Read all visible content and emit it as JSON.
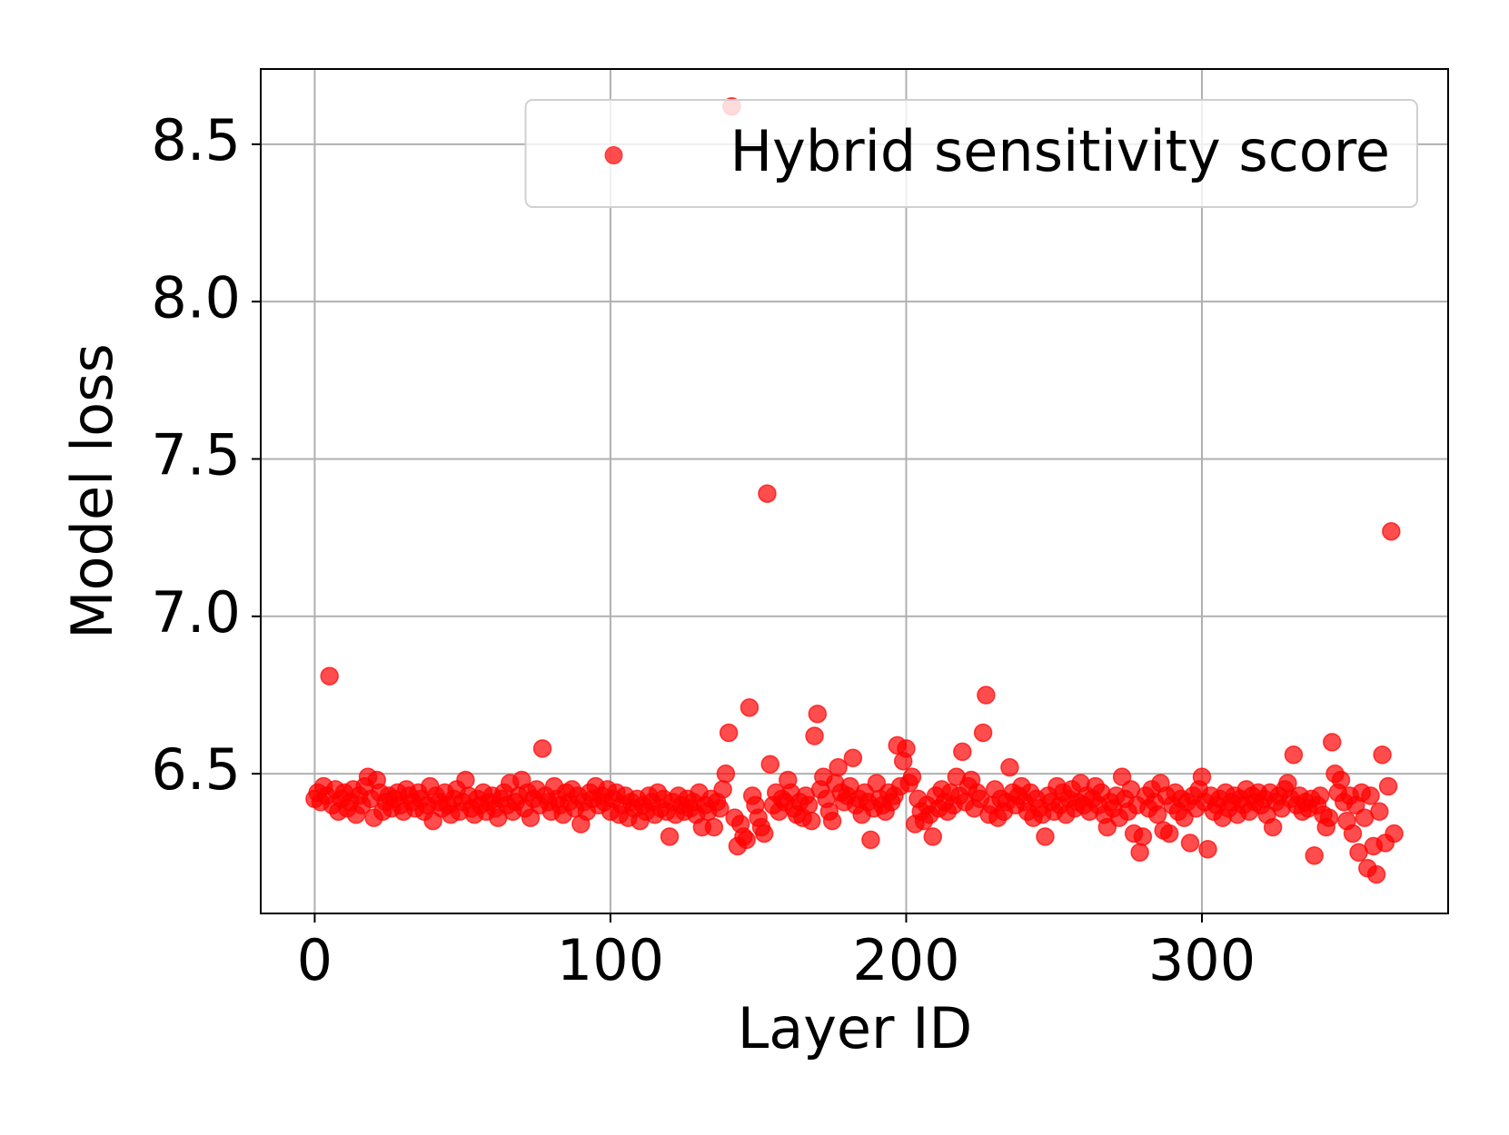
{
  "chart_data": {
    "type": "scatter",
    "xlabel": "Layer ID",
    "ylabel": "Model loss",
    "xlim": [
      -18.25,
      383.25
    ],
    "ylim": [
      6.056,
      8.739
    ],
    "xticks": [
      0,
      100,
      200,
      300
    ],
    "yticks": [
      {
        "value": 6.5,
        "label": "6.5"
      },
      {
        "value": 7.0,
        "label": "7.0"
      },
      {
        "value": 7.5,
        "label": "7.5"
      },
      {
        "value": 8.0,
        "label": "8.0"
      },
      {
        "value": 8.5,
        "label": "8.5"
      }
    ],
    "grid": true,
    "legend": "upper right",
    "series": [
      {
        "name": "Hybrid sensitivity score",
        "color": "#ff0000",
        "x": [
          0,
          1,
          2,
          3,
          4,
          5,
          6,
          7,
          8,
          9,
          10,
          11,
          12,
          13,
          14,
          15,
          16,
          17,
          18,
          19,
          20,
          21,
          22,
          23,
          24,
          25,
          26,
          27,
          28,
          29,
          30,
          31,
          32,
          33,
          34,
          35,
          36,
          37,
          38,
          39,
          40,
          41,
          42,
          43,
          44,
          45,
          46,
          47,
          48,
          49,
          50,
          51,
          52,
          53,
          54,
          55,
          56,
          57,
          58,
          59,
          60,
          61,
          62,
          63,
          64,
          65,
          66,
          67,
          68,
          69,
          70,
          71,
          72,
          73,
          74,
          75,
          76,
          77,
          78,
          79,
          80,
          81,
          82,
          83,
          84,
          85,
          86,
          87,
          88,
          89,
          90,
          91,
          92,
          93,
          94,
          95,
          96,
          97,
          98,
          99,
          100,
          101,
          102,
          103,
          104,
          105,
          106,
          107,
          108,
          109,
          110,
          111,
          112,
          113,
          114,
          115,
          116,
          117,
          118,
          119,
          120,
          121,
          122,
          123,
          124,
          125,
          126,
          127,
          128,
          129,
          130,
          131,
          132,
          133,
          134,
          135,
          136,
          137,
          138,
          139,
          140,
          141,
          142,
          143,
          144,
          145,
          146,
          147,
          148,
          149,
          150,
          151,
          152,
          153,
          154,
          155,
          156,
          157,
          158,
          159,
          160,
          161,
          162,
          163,
          164,
          165,
          166,
          167,
          168,
          169,
          170,
          171,
          172,
          173,
          174,
          175,
          176,
          177,
          178,
          179,
          180,
          181,
          182,
          183,
          184,
          185,
          186,
          187,
          188,
          189,
          190,
          191,
          192,
          193,
          194,
          195,
          196,
          197,
          198,
          199,
          200,
          201,
          202,
          203,
          204,
          205,
          206,
          207,
          208,
          209,
          210,
          211,
          212,
          213,
          214,
          215,
          216,
          217,
          218,
          219,
          220,
          221,
          222,
          223,
          224,
          225,
          226,
          227,
          228,
          229,
          230,
          231,
          232,
          233,
          234,
          235,
          236,
          237,
          238,
          239,
          240,
          241,
          242,
          243,
          244,
          245,
          246,
          247,
          248,
          249,
          250,
          251,
          252,
          253,
          254,
          255,
          256,
          257,
          258,
          259,
          260,
          261,
          262,
          263,
          264,
          265,
          266,
          267,
          268,
          269,
          270,
          271,
          272,
          273,
          274,
          275,
          276,
          277,
          278,
          279,
          280,
          281,
          282,
          283,
          284,
          285,
          286,
          287,
          288,
          289,
          290,
          291,
          292,
          293,
          294,
          295,
          296,
          297,
          298,
          299,
          300,
          301,
          302,
          303,
          304,
          305,
          306,
          307,
          308,
          309,
          310,
          311,
          312,
          313,
          314,
          315,
          316,
          317,
          318,
          319,
          320,
          321,
          322,
          323,
          324,
          325,
          326,
          327,
          328,
          329,
          330,
          331,
          332,
          333,
          334,
          335,
          336,
          337,
          338,
          339,
          340,
          341,
          342,
          343,
          344,
          345,
          346,
          347,
          348,
          349,
          350,
          351,
          352,
          353,
          354,
          355,
          356,
          357,
          358,
          359,
          360,
          361,
          362,
          363,
          364,
          365
        ],
        "values": [
          6.42,
          6.44,
          6.41,
          6.46,
          6.43,
          6.81,
          6.4,
          6.45,
          6.38,
          6.42,
          6.44,
          6.39,
          6.41,
          6.45,
          6.37,
          6.43,
          6.4,
          6.46,
          6.49,
          6.42,
          6.36,
          6.48,
          6.44,
          6.38,
          6.41,
          6.43,
          6.39,
          6.42,
          6.44,
          6.4,
          6.38,
          6.45,
          6.43,
          6.41,
          6.39,
          6.44,
          6.42,
          6.38,
          6.4,
          6.46,
          6.35,
          6.43,
          6.41,
          6.39,
          6.44,
          6.4,
          6.37,
          6.42,
          6.45,
          6.38,
          6.41,
          6.48,
          6.43,
          6.39,
          6.37,
          6.42,
          6.4,
          6.44,
          6.38,
          6.41,
          6.43,
          6.39,
          6.36,
          6.42,
          6.44,
          6.4,
          6.47,
          6.38,
          6.41,
          6.43,
          6.48,
          6.39,
          6.44,
          6.36,
          6.42,
          6.45,
          6.4,
          6.58,
          6.43,
          6.41,
          6.38,
          6.46,
          6.42,
          6.4,
          6.37,
          6.44,
          6.41,
          6.45,
          6.39,
          6.43,
          6.34,
          6.41,
          6.38,
          6.44,
          6.42,
          6.46,
          6.4,
          6.43,
          6.41,
          6.45,
          6.38,
          6.42,
          6.44,
          6.37,
          6.4,
          6.43,
          6.36,
          6.41,
          6.39,
          6.42,
          6.35,
          6.4,
          6.38,
          6.43,
          6.41,
          6.37,
          6.44,
          6.39,
          6.42,
          6.38,
          6.3,
          6.41,
          6.37,
          6.43,
          6.4,
          6.38,
          6.42,
          6.39,
          6.41,
          6.37,
          6.44,
          6.33,
          6.4,
          6.38,
          6.42,
          6.33,
          6.41,
          6.39,
          6.45,
          6.5,
          6.63,
          8.62,
          6.36,
          6.27,
          6.34,
          6.3,
          6.29,
          6.71,
          6.43,
          6.4,
          6.36,
          6.33,
          6.31,
          7.39,
          6.53,
          6.4,
          6.44,
          6.38,
          6.42,
          6.41,
          6.48,
          6.44,
          6.39,
          6.37,
          6.41,
          6.36,
          6.43,
          6.4,
          6.35,
          6.62,
          6.69,
          6.45,
          6.49,
          6.42,
          6.38,
          6.35,
          6.47,
          6.52,
          6.44,
          6.41,
          6.43,
          6.46,
          6.55,
          6.4,
          6.42,
          6.37,
          6.44,
          6.41,
          6.29,
          6.39,
          6.47,
          6.42,
          6.4,
          6.38,
          6.44,
          6.41,
          6.43,
          6.59,
          6.46,
          6.54,
          6.58,
          6.47,
          6.49,
          6.34,
          6.42,
          6.38,
          6.35,
          6.4,
          6.37,
          6.3,
          6.43,
          6.39,
          6.45,
          6.41,
          6.38,
          6.44,
          6.4,
          6.49,
          6.43,
          6.57,
          6.41,
          6.46,
          6.48,
          6.39,
          6.44,
          6.42,
          6.63,
          6.75,
          6.37,
          6.4,
          6.45,
          6.36,
          6.42,
          6.38,
          6.41,
          6.52,
          6.44,
          6.4,
          6.43,
          6.46,
          6.41,
          6.38,
          6.44,
          6.36,
          6.42,
          6.39,
          6.37,
          6.3,
          6.43,
          6.41,
          6.38,
          6.46,
          6.4,
          6.44,
          6.37,
          6.42,
          6.45,
          6.39,
          6.41,
          6.47,
          6.4,
          6.43,
          6.38,
          6.42,
          6.46,
          6.4,
          6.44,
          6.37,
          6.33,
          6.41,
          6.39,
          6.43,
          6.36,
          6.49,
          6.42,
          6.38,
          6.45,
          6.31,
          6.4,
          6.25,
          6.3,
          6.43,
          6.39,
          6.45,
          6.41,
          6.37,
          6.47,
          6.32,
          6.43,
          6.31,
          6.4,
          6.44,
          6.38,
          6.42,
          6.36,
          6.41,
          6.28,
          6.43,
          6.39,
          6.45,
          6.49,
          6.41,
          6.26,
          6.43,
          6.38,
          6.4,
          6.42,
          6.36,
          6.44,
          6.39,
          6.41,
          6.43,
          6.37,
          6.42,
          6.4,
          6.45,
          6.38,
          6.43,
          6.41,
          6.44,
          6.4,
          6.42,
          6.37,
          6.44,
          6.33,
          6.41,
          6.43,
          6.39,
          6.45,
          6.47,
          6.42,
          6.56,
          6.4,
          6.43,
          6.38,
          6.41,
          6.39,
          6.42,
          6.24,
          6.4,
          6.43,
          6.37,
          6.33,
          6.36,
          6.6,
          6.5,
          6.44,
          6.48,
          6.41,
          6.35,
          6.43,
          6.31,
          6.4,
          6.25,
          6.44,
          6.36,
          6.2,
          6.43,
          6.27,
          6.18,
          6.38,
          6.56,
          6.28,
          6.46,
          7.27,
          6.31
        ]
      }
    ]
  }
}
